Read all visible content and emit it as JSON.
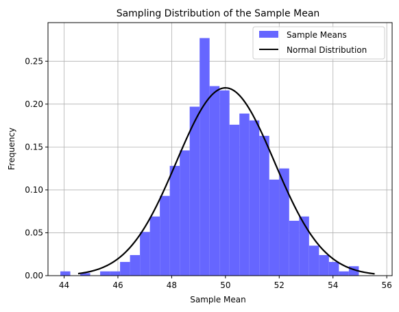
{
  "chart_data": {
    "type": "bar",
    "title": "Sampling Distribution of the Sample Mean",
    "xlabel": "Sample Mean",
    "ylabel": "Frequency",
    "xlim": [
      43.4,
      56.2
    ],
    "ylim": [
      0,
      0.295
    ],
    "xticks": [
      44,
      46,
      48,
      50,
      52,
      54,
      56
    ],
    "yticks": [
      0.0,
      0.05,
      0.1,
      0.15,
      0.2,
      0.25
    ],
    "grid": true,
    "legend_position": "top-right",
    "histogram": {
      "name": "Sample Means",
      "color": "#6666ff",
      "bins": [
        {
          "x0": 43.86,
          "x1": 44.23,
          "value": 0.005
        },
        {
          "x0": 44.23,
          "x1": 44.6,
          "value": 0.0
        },
        {
          "x0": 44.6,
          "x1": 44.97,
          "value": 0.003
        },
        {
          "x0": 44.97,
          "x1": 45.34,
          "value": 0.0
        },
        {
          "x0": 45.34,
          "x1": 45.71,
          "value": 0.005
        },
        {
          "x0": 45.71,
          "x1": 46.08,
          "value": 0.005
        },
        {
          "x0": 46.08,
          "x1": 46.45,
          "value": 0.016
        },
        {
          "x0": 46.45,
          "x1": 46.82,
          "value": 0.024
        },
        {
          "x0": 46.82,
          "x1": 47.19,
          "value": 0.051
        },
        {
          "x0": 47.19,
          "x1": 47.56,
          "value": 0.069
        },
        {
          "x0": 47.56,
          "x1": 47.93,
          "value": 0.093
        },
        {
          "x0": 47.93,
          "x1": 48.3,
          "value": 0.128
        },
        {
          "x0": 48.3,
          "x1": 48.67,
          "value": 0.146
        },
        {
          "x0": 48.67,
          "x1": 49.04,
          "value": 0.197
        },
        {
          "x0": 49.04,
          "x1": 49.41,
          "value": 0.277
        },
        {
          "x0": 49.41,
          "x1": 49.78,
          "value": 0.221
        },
        {
          "x0": 49.78,
          "x1": 50.15,
          "value": 0.216
        },
        {
          "x0": 50.15,
          "x1": 50.52,
          "value": 0.176
        },
        {
          "x0": 50.52,
          "x1": 50.89,
          "value": 0.189
        },
        {
          "x0": 50.89,
          "x1": 51.26,
          "value": 0.181
        },
        {
          "x0": 51.26,
          "x1": 51.63,
          "value": 0.163
        },
        {
          "x0": 51.63,
          "x1": 52.0,
          "value": 0.112
        },
        {
          "x0": 52.0,
          "x1": 52.37,
          "value": 0.125
        },
        {
          "x0": 52.37,
          "x1": 52.74,
          "value": 0.064
        },
        {
          "x0": 52.74,
          "x1": 53.11,
          "value": 0.069
        },
        {
          "x0": 53.11,
          "x1": 53.48,
          "value": 0.035
        },
        {
          "x0": 53.48,
          "x1": 53.85,
          "value": 0.024
        },
        {
          "x0": 53.85,
          "x1": 54.22,
          "value": 0.016
        },
        {
          "x0": 54.22,
          "x1": 54.59,
          "value": 0.005
        },
        {
          "x0": 54.59,
          "x1": 54.96,
          "value": 0.011
        }
      ]
    },
    "curve": {
      "name": "Normal Distribution",
      "color": "#000000",
      "mean": 50.0,
      "std": 1.822,
      "x_range": [
        44.52,
        55.55
      ]
    }
  }
}
